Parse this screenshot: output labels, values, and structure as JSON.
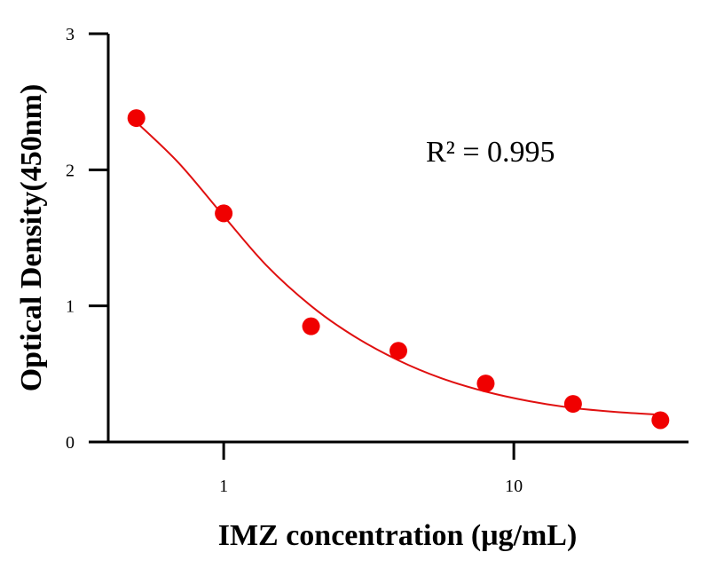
{
  "chart_data": {
    "type": "scatter",
    "x_scale": "log",
    "xlabel": "IMZ concentration (μg/mL)",
    "ylabel": "Optical Density(450nm)",
    "annotation": "R² = 0.995",
    "xlim": [
      0.4,
      40
    ],
    "ylim": [
      0,
      3
    ],
    "x_ticks": [
      1,
      10
    ],
    "x_tick_labels": [
      "1",
      "10"
    ],
    "y_ticks": [
      0,
      1,
      2,
      3
    ],
    "y_tick_labels": [
      "0",
      "1",
      "2",
      "3"
    ],
    "grid": false,
    "points": [
      {
        "x": 0.5,
        "y": 2.38
      },
      {
        "x": 1,
        "y": 1.68
      },
      {
        "x": 2,
        "y": 0.85
      },
      {
        "x": 4,
        "y": 0.67
      },
      {
        "x": 8,
        "y": 0.43
      },
      {
        "x": 16,
        "y": 0.28
      },
      {
        "x": 32,
        "y": 0.16
      }
    ],
    "fit_curve": {
      "x": [
        0.5,
        0.7,
        1,
        1.4,
        2,
        2.8,
        4,
        5.6,
        8,
        11.3,
        16,
        22.6,
        32
      ],
      "y": [
        2.35,
        2.05,
        1.66,
        1.3,
        1.0,
        0.78,
        0.6,
        0.47,
        0.37,
        0.3,
        0.25,
        0.22,
        0.2
      ]
    },
    "colors": {
      "points": "#f00000",
      "curve": "#e01010",
      "axis": "#000000"
    }
  }
}
